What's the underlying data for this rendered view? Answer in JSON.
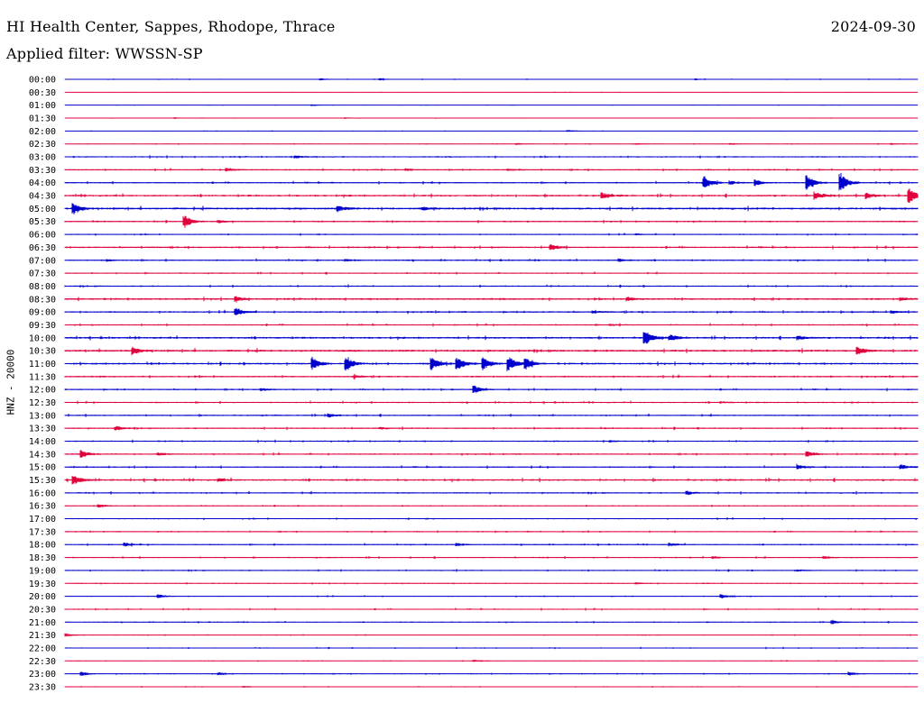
{
  "header": {
    "title": "HI Health Center, Sappes, Rhodope, Thrace",
    "date": "2024-09-30",
    "filter": "Applied filter: WWSSN-SP"
  },
  "chart_data": {
    "type": "line",
    "title": "HI Health Center, Sappes, Rhodope, Thrace",
    "subtitle": "Applied filter: WWSSN-SP",
    "ylabel": "HNZ - 20000",
    "xlabel": "",
    "colors": [
      "#0000cc",
      "#e0003c"
    ],
    "rows": [
      {
        "label": "00:00",
        "color": "#0000cc",
        "noise": 0.3,
        "events": [
          [
            0.3,
            1.2
          ],
          [
            0.37,
            1.0
          ],
          [
            0.74,
            0.8
          ]
        ]
      },
      {
        "label": "00:30",
        "color": "#e0003c",
        "noise": 0.2,
        "events": []
      },
      {
        "label": "01:00",
        "color": "#0000cc",
        "noise": 0.2,
        "events": [
          [
            0.29,
            0.8
          ]
        ]
      },
      {
        "label": "01:30",
        "color": "#e0003c",
        "noise": 0.2,
        "events": [
          [
            0.13,
            0.8
          ],
          [
            0.33,
            0.8
          ]
        ]
      },
      {
        "label": "02:00",
        "color": "#0000cc",
        "noise": 0.2,
        "events": [
          [
            0.59,
            1.2
          ]
        ]
      },
      {
        "label": "02:30",
        "color": "#e0003c",
        "noise": 0.3,
        "events": [
          [
            0.53,
            0.8
          ],
          [
            0.67,
            0.8
          ],
          [
            0.78,
            0.8
          ],
          [
            0.97,
            0.8
          ]
        ]
      },
      {
        "label": "03:00",
        "color": "#0000cc",
        "noise": 0.6,
        "events": [
          [
            0.27,
            1.5
          ]
        ]
      },
      {
        "label": "03:30",
        "color": "#e0003c",
        "noise": 0.6,
        "events": [
          [
            0.19,
            2.0
          ],
          [
            0.4,
            1.0
          ],
          [
            0.52,
            1.0
          ]
        ]
      },
      {
        "label": "04:00",
        "color": "#0000cc",
        "noise": 0.6,
        "events": [
          [
            0.75,
            7.0
          ],
          [
            0.78,
            2.0
          ],
          [
            0.81,
            3.0
          ],
          [
            0.87,
            8.0
          ],
          [
            0.91,
            10.0
          ]
        ]
      },
      {
        "label": "04:30",
        "color": "#e0003c",
        "noise": 0.8,
        "events": [
          [
            0.63,
            3.0
          ],
          [
            0.88,
            4.0
          ],
          [
            0.94,
            3.0
          ],
          [
            0.99,
            8.0
          ]
        ]
      },
      {
        "label": "05:00",
        "color": "#0000cc",
        "noise": 0.9,
        "events": [
          [
            0.01,
            6.0
          ],
          [
            0.32,
            3.0
          ],
          [
            0.42,
            1.5
          ]
        ]
      },
      {
        "label": "05:30",
        "color": "#e0003c",
        "noise": 0.6,
        "events": [
          [
            0.14,
            7.0
          ],
          [
            0.18,
            1.5
          ]
        ]
      },
      {
        "label": "06:00",
        "color": "#0000cc",
        "noise": 0.5,
        "events": [
          [
            0.67,
            1.0
          ]
        ]
      },
      {
        "label": "06:30",
        "color": "#e0003c",
        "noise": 0.7,
        "events": [
          [
            0.57,
            3.0
          ]
        ]
      },
      {
        "label": "07:00",
        "color": "#0000cc",
        "noise": 0.6,
        "events": [
          [
            0.05,
            1.0
          ],
          [
            0.33,
            1.0
          ],
          [
            0.65,
            1.5
          ]
        ]
      },
      {
        "label": "07:30",
        "color": "#e0003c",
        "noise": 0.5,
        "events": []
      },
      {
        "label": "08:00",
        "color": "#0000cc",
        "noise": 0.6,
        "events": []
      },
      {
        "label": "08:30",
        "color": "#e0003c",
        "noise": 0.8,
        "events": [
          [
            0.2,
            2.5
          ],
          [
            0.66,
            2.0
          ],
          [
            0.98,
            1.5
          ]
        ]
      },
      {
        "label": "09:00",
        "color": "#0000cc",
        "noise": 0.7,
        "events": [
          [
            0.2,
            5.0
          ],
          [
            0.62,
            1.0
          ],
          [
            0.97,
            1.5
          ]
        ]
      },
      {
        "label": "09:30",
        "color": "#e0003c",
        "noise": 0.6,
        "events": [
          [
            0.64,
            1.0
          ]
        ]
      },
      {
        "label": "10:00",
        "color": "#0000cc",
        "noise": 0.8,
        "events": [
          [
            0.68,
            8.0
          ],
          [
            0.71,
            3.0
          ],
          [
            0.86,
            2.0
          ]
        ]
      },
      {
        "label": "10:30",
        "color": "#e0003c",
        "noise": 0.9,
        "events": [
          [
            0.08,
            4.0
          ],
          [
            0.93,
            4.0
          ]
        ]
      },
      {
        "label": "11:00",
        "color": "#0000cc",
        "noise": 0.8,
        "events": [
          [
            0.29,
            7.0
          ],
          [
            0.33,
            7.0
          ],
          [
            0.43,
            7.0
          ],
          [
            0.46,
            7.0
          ],
          [
            0.49,
            7.0
          ],
          [
            0.52,
            8.0
          ],
          [
            0.54,
            6.0
          ]
        ]
      },
      {
        "label": "11:30",
        "color": "#e0003c",
        "noise": 0.7,
        "events": [
          [
            0.34,
            1.5
          ]
        ]
      },
      {
        "label": "12:00",
        "color": "#0000cc",
        "noise": 0.6,
        "events": [
          [
            0.23,
            1.5
          ],
          [
            0.48,
            4.0
          ]
        ]
      },
      {
        "label": "12:30",
        "color": "#e0003c",
        "noise": 0.6,
        "events": [
          [
            0.77,
            1.0
          ]
        ]
      },
      {
        "label": "13:00",
        "color": "#0000cc",
        "noise": 0.6,
        "events": [
          [
            0.31,
            2.0
          ]
        ]
      },
      {
        "label": "13:30",
        "color": "#e0003c",
        "noise": 0.6,
        "events": [
          [
            0.06,
            2.0
          ],
          [
            0.37,
            1.0
          ]
        ]
      },
      {
        "label": "14:00",
        "color": "#0000cc",
        "noise": 0.6,
        "events": [
          [
            0.64,
            1.0
          ]
        ]
      },
      {
        "label": "14:30",
        "color": "#e0003c",
        "noise": 0.6,
        "events": [
          [
            0.02,
            4.0
          ],
          [
            0.11,
            1.5
          ],
          [
            0.87,
            3.0
          ]
        ]
      },
      {
        "label": "15:00",
        "color": "#0000cc",
        "noise": 0.6,
        "events": [
          [
            0.86,
            2.0
          ],
          [
            0.98,
            2.5
          ]
        ]
      },
      {
        "label": "15:30",
        "color": "#e0003c",
        "noise": 0.8,
        "events": [
          [
            0.01,
            5.0
          ],
          [
            0.18,
            1.5
          ]
        ]
      },
      {
        "label": "16:00",
        "color": "#0000cc",
        "noise": 0.6,
        "events": [
          [
            0.73,
            2.0
          ]
        ]
      },
      {
        "label": "16:30",
        "color": "#e0003c",
        "noise": 0.4,
        "events": [
          [
            0.04,
            2.0
          ]
        ]
      },
      {
        "label": "17:00",
        "color": "#0000cc",
        "noise": 0.5,
        "events": []
      },
      {
        "label": "17:30",
        "color": "#e0003c",
        "noise": 0.5,
        "events": []
      },
      {
        "label": "18:00",
        "color": "#0000cc",
        "noise": 0.5,
        "events": [
          [
            0.07,
            2.0
          ],
          [
            0.46,
            1.5
          ],
          [
            0.71,
            1.5
          ]
        ]
      },
      {
        "label": "18:30",
        "color": "#e0003c",
        "noise": 0.5,
        "events": [
          [
            0.76,
            1.5
          ],
          [
            0.89,
            1.5
          ]
        ]
      },
      {
        "label": "19:00",
        "color": "#0000cc",
        "noise": 0.5,
        "events": [
          [
            0.86,
            1.0
          ]
        ]
      },
      {
        "label": "19:30",
        "color": "#e0003c",
        "noise": 0.4,
        "events": [
          [
            0.67,
            1.0
          ]
        ]
      },
      {
        "label": "20:00",
        "color": "#0000cc",
        "noise": 0.4,
        "events": [
          [
            0.11,
            2.0
          ],
          [
            0.77,
            2.0
          ]
        ]
      },
      {
        "label": "20:30",
        "color": "#e0003c",
        "noise": 0.5,
        "events": []
      },
      {
        "label": "21:00",
        "color": "#0000cc",
        "noise": 0.4,
        "events": [
          [
            0.9,
            2.0
          ]
        ]
      },
      {
        "label": "21:30",
        "color": "#e0003c",
        "noise": 0.3,
        "events": [
          [
            0.0,
            2.0
          ]
        ]
      },
      {
        "label": "22:00",
        "color": "#0000cc",
        "noise": 0.4,
        "events": []
      },
      {
        "label": "22:30",
        "color": "#e0003c",
        "noise": 0.3,
        "events": [
          [
            0.48,
            1.0
          ]
        ]
      },
      {
        "label": "23:00",
        "color": "#0000cc",
        "noise": 0.4,
        "events": [
          [
            0.02,
            2.0
          ],
          [
            0.18,
            1.5
          ],
          [
            0.92,
            2.0
          ]
        ]
      },
      {
        "label": "23:30",
        "color": "#e0003c",
        "noise": 0.3,
        "events": [
          [
            0.21,
            1.0
          ]
        ]
      }
    ]
  }
}
